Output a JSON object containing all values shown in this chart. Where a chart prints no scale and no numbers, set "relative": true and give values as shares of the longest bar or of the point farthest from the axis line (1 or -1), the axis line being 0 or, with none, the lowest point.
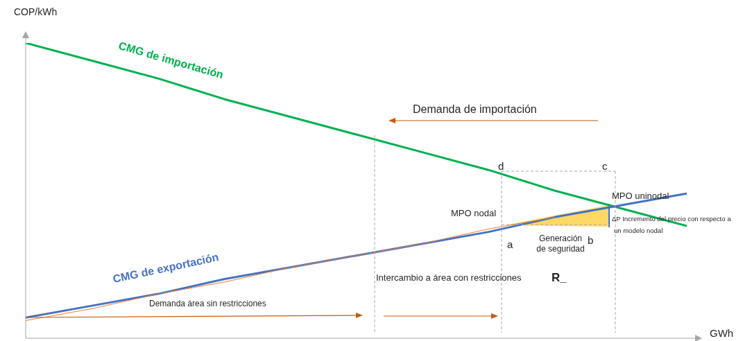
{
  "chart_data": {
    "type": "line",
    "relative": true,
    "ylabel": "COP/kWh",
    "xlabel": "GWh",
    "categories": [
      null,
      null,
      null,
      null,
      null,
      null,
      null,
      null,
      null,
      null,
      null
    ],
    "series": [
      {
        "name": "CMG de importación",
        "color": "#00b050",
        "values": [
          1,
          0.94,
          0.88,
          0.81,
          0.75,
          0.69,
          0.63,
          0.57,
          0.5,
          0.44,
          0.38
        ]
      },
      {
        "name": "CMG de exportación",
        "color": "#4472c4",
        "values": [
          0.07,
          0.11,
          0.15,
          0.2,
          0.24,
          0.28,
          0.32,
          0.36,
          0.41,
          0.45,
          0.49
        ]
      },
      {
        "color": "#ed7d31",
        "values": [
          0.06,
          0.1,
          0.15,
          0.19,
          0.24,
          0.28,
          0.32,
          0.37,
          0.41,
          null,
          null
        ]
      }
    ],
    "annotations": [
      "Demanda de importación",
      "d",
      "c",
      "MPO uninodal",
      "MPO nodal",
      "ΔP Incremento del precio con respecto a",
      "un modelo nodal",
      "a",
      "b",
      "Generación",
      "de seguridad",
      "Intercambio a área con restricciones",
      "R_",
      "Demanda área sin restricciones"
    ],
    "marker": "none",
    "line_style": "solid"
  }
}
